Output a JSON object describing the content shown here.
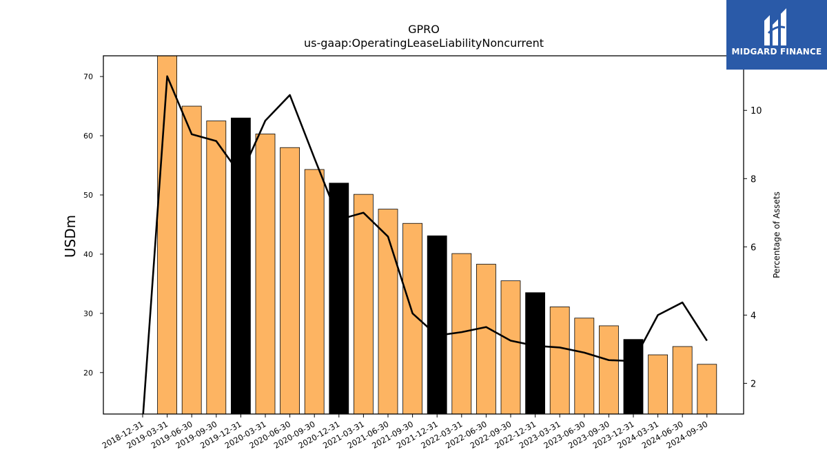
{
  "chart_data": {
    "type": "bar",
    "title": "GPRO",
    "subtitle": "us-gaap:OperatingLeaseLiabilityNoncurrent",
    "ylabel": "USDm",
    "y2label": "Percentage of Assets",
    "ylim": [
      13,
      73.5
    ],
    "y2lim": [
      1.1,
      11.6
    ],
    "yticks": [
      20,
      30,
      40,
      50,
      60,
      70
    ],
    "y2ticks": [
      2,
      4,
      6,
      8,
      10
    ],
    "categories": [
      "2018-12-31",
      "2019-03-31",
      "2019-06-30",
      "2019-09-30",
      "2019-12-31",
      "2020-03-31",
      "2020-06-30",
      "2020-09-30",
      "2020-12-31",
      "2021-03-31",
      "2021-06-30",
      "2021-09-30",
      "2021-12-31",
      "2022-03-31",
      "2022-06-30",
      "2022-09-30",
      "2022-12-31",
      "2023-03-31",
      "2023-06-30",
      "2023-09-30",
      "2023-12-31",
      "2024-03-31",
      "2024-06-30",
      "2024-09-30"
    ],
    "series": [
      {
        "type": "bar",
        "values": [
          null,
          74.0,
          65.0,
          62.5,
          63.0,
          60.3,
          58.0,
          54.3,
          52.0,
          50.1,
          47.6,
          45.2,
          43.1,
          40.1,
          38.3,
          35.5,
          33.5,
          31.1,
          29.2,
          27.9,
          25.6,
          23.0,
          24.4,
          21.4
        ],
        "highlight": [
          false,
          false,
          false,
          false,
          true,
          false,
          false,
          false,
          true,
          false,
          false,
          false,
          true,
          false,
          false,
          false,
          true,
          false,
          false,
          false,
          true,
          false,
          false,
          false
        ]
      },
      {
        "type": "line",
        "values": [
          0.9,
          11.0,
          9.3,
          9.1,
          8.1,
          9.7,
          10.45,
          8.6,
          6.8,
          7.0,
          6.3,
          4.05,
          3.4,
          3.5,
          3.65,
          3.25,
          3.1,
          3.05,
          2.9,
          2.68,
          2.65,
          4.0,
          4.37,
          3.25
        ]
      }
    ],
    "colors": {
      "bar": "#fdb462",
      "highlight": "#000000",
      "line": "#000000"
    }
  },
  "logo": {
    "text": "MIDGARD FINANCE"
  }
}
